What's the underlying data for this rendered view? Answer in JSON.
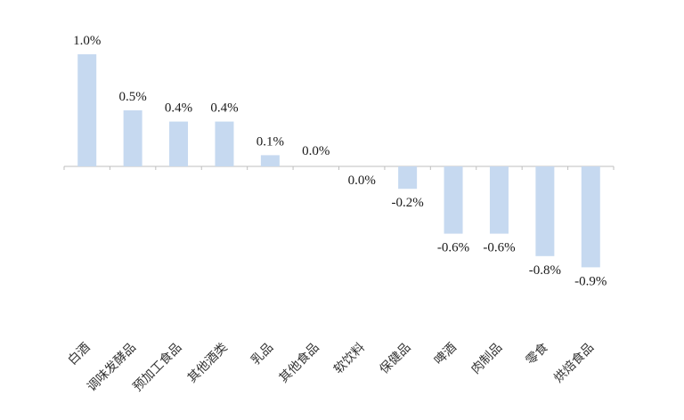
{
  "chart_data": {
    "type": "bar",
    "categories": [
      "白酒",
      "调味发酵品",
      "预加工食品",
      "其他酒类",
      "乳品",
      "其他食品",
      "软饮料",
      "保健品",
      "啤酒",
      "肉制品",
      "零食",
      "烘焙食品"
    ],
    "values": [
      1.0,
      0.5,
      0.4,
      0.4,
      0.1,
      0.0,
      0.0,
      -0.2,
      -0.6,
      -0.6,
      -0.8,
      -0.9
    ],
    "data_labels": [
      "1.0%",
      "0.5%",
      "0.4%",
      "0.4%",
      "0.1%",
      "0.0%",
      "0.0%",
      "-0.2%",
      "-0.6%",
      "-0.6%",
      "-0.8%",
      "-0.9%"
    ],
    "colors": {
      "bar": "#c6d9f0",
      "axis": "#bfbfbf",
      "text": "#1a1a1a"
    },
    "grid": false,
    "legend": "none"
  }
}
